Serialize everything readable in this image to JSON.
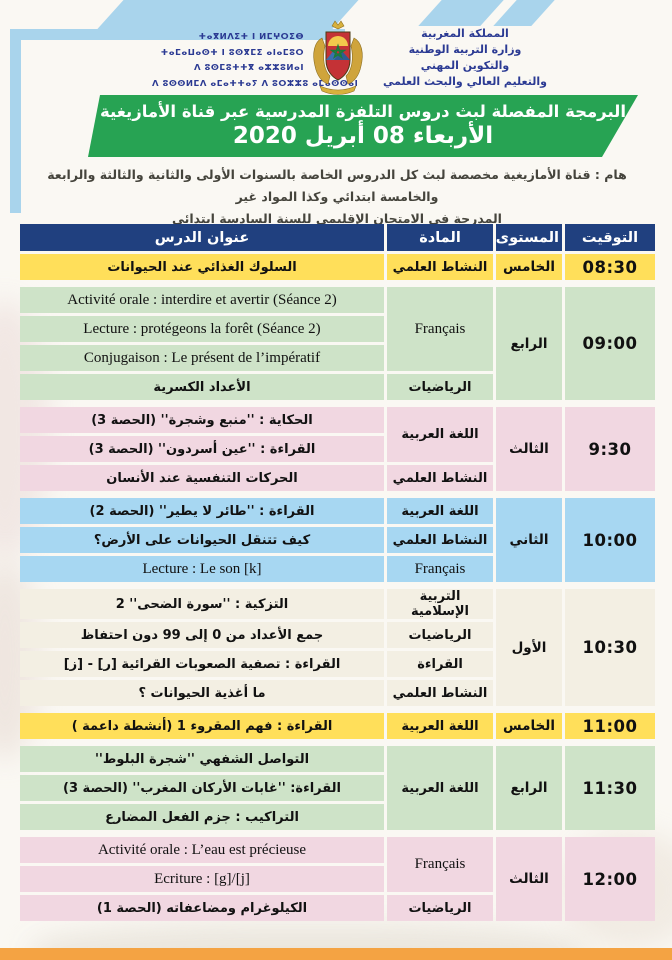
{
  "header": {
    "ministry_tifinagh": [
      "ⵜⴰⴳⵍⴷⵉⵜ ⵏ ⵍⵎⵖⵔⵉⴱ",
      "ⵜⴰⵎⴰⵡⴰⵙⵜ ⵏ ⵓⵙⴳⵎⵉ ⴰⵏⴰⵎⵓⵔ",
      "ⴷ ⵓⵙⵎⵓⵜⵜⴳ ⴰⵣⵣⵓⵍⴰⵏ",
      "ⴷ ⵓⵙⵙⵍⵎⴷ ⴰⵎⴰⵜⵜⴰⵢ ⴷ ⵓⵔⵣⵣⵓ ⴰⵎⴰⵙⵙⴰⵏ"
    ],
    "ministry_ar": [
      "المملكة المغربية",
      "وزارة التربية الوطنية",
      "والتكوين المهني",
      "والتعليم العالي والبحث العلمي"
    ],
    "emblem": "moroccan-coat-of-arms"
  },
  "banner": {
    "line1": "البرمجة المفصلة لبث دروس التلفزة المدرسية عبر قناة الأمازيغية",
    "line2": "الأربعاء 08 أبريل 2020",
    "background_color": "#27a353"
  },
  "note": {
    "line1": "هام : قناة الأمازيغية مخصصة لبث كل الدروس الخاصة بالسنوات الأولى والثانية والثالثة والرابعة والخامسة ابتدائي وكذا المواد غير",
    "line2": "المدرجة في الامتحان الإقليمي للسنة السادسة ابتدائي"
  },
  "colors": {
    "header_navy": "#20407f",
    "row_yellow": "#ffdf5a",
    "row_green": "#cee3c8",
    "row_pink": "#f1d7e1",
    "row_blue": "#a7d7f2",
    "row_cream": "#f3efe3",
    "banner_green": "#27a353",
    "bottom_orange": "#f4a343",
    "ministry_blue": "#2b3a93",
    "decor_light_blue": "#a9d4ec"
  },
  "table": {
    "headers": {
      "time": "التوقيت",
      "level": "المستوى",
      "subject": "المادة",
      "title": "عنوان الدرس"
    },
    "blocks": [
      {
        "time": "08:30",
        "level": "الخامس",
        "color": "yellow",
        "groups": [
          {
            "subject": "النشاط العلمي",
            "lessons": [
              "السلوك الغذائي عند الحيوانات"
            ]
          }
        ]
      },
      {
        "time": "09:00",
        "level": "الرابع",
        "color": "green",
        "groups": [
          {
            "subject": "Français",
            "latin": true,
            "lessons": [
              "Activité orale : interdire et avertir (Séance 2)",
              "Lecture : protégeons la forêt (Séance 2)",
              "Conjugaison : Le présent de l’impératif"
            ]
          },
          {
            "subject": "الرياضيات",
            "lessons": [
              "الأعداد الكسرية"
            ]
          }
        ]
      },
      {
        "time": "9:30",
        "level": "الثالث",
        "color": "pink",
        "groups": [
          {
            "subject": "اللغة العربية",
            "lessons": [
              "الحكاية : ''منبع وشجرة'' (الحصة 3)",
              "القراءة : ''عين أسردون'' (الحصة 3)"
            ]
          },
          {
            "subject": "النشاط العلمي",
            "lessons": [
              "الحركات التنفسية عند الأنسان"
            ]
          }
        ]
      },
      {
        "time": "10:00",
        "level": "الثاني",
        "color": "blue",
        "groups": [
          {
            "subject": "اللغة العربية",
            "lessons": [
              "القراءة : ''طائر لا يطير'' (الحصة 2)"
            ]
          },
          {
            "subject": "النشاط العلمي",
            "lessons": [
              "كيف تتنقل الحيوانات على الأرض؟"
            ]
          },
          {
            "subject": "Français",
            "latin": true,
            "lessons": [
              "Lecture : Le son [k]"
            ]
          }
        ]
      },
      {
        "time": "10:30",
        "level": "الأول",
        "color": "cream",
        "groups": [
          {
            "subject": "التربية الإسلامية",
            "lessons": [
              "التزكية : ''سورة الضحى''  2"
            ]
          },
          {
            "subject": "الرياضيات",
            "lessons": [
              "جمع الأعداد من 0 إلى 99 دون احتفاظ"
            ]
          },
          {
            "subject": "القراءة",
            "lessons": [
              "القراءة : تصفية الصعوبات القرائية [ر] - [ز]"
            ]
          },
          {
            "subject": "النشاط العلمي",
            "lessons": [
              "ما أغذية الحيوانات ؟"
            ]
          }
        ]
      },
      {
        "time": "11:00",
        "level": "الخامس",
        "color": "yellow",
        "groups": [
          {
            "subject": "اللغة العربية",
            "lessons": [
              "القراءة : فهم المقروء 1 (أنشطة داعمة )"
            ]
          }
        ]
      },
      {
        "time": "11:30",
        "level": "الرابع",
        "color": "green",
        "groups": [
          {
            "subject": "اللغة العربية",
            "lessons": [
              "التواصل الشفهي ''شجرة البلوط''",
              "القراءة: ''غابات الأركان المغرب'' (الحصة 3)",
              "التراكيب : جزم الفعل المضارع"
            ]
          }
        ]
      },
      {
        "time": "12:00",
        "level": "الثالث",
        "color": "pink",
        "groups": [
          {
            "subject": "Français",
            "latin": true,
            "lessons": [
              "Activité orale : L’eau est précieuse",
              "Ecriture : [g]/[j]"
            ]
          },
          {
            "subject": "الرياضيات",
            "lessons": [
              "الكيلوغرام ومضاعفاته  (الحصة 1)"
            ]
          }
        ]
      }
    ]
  }
}
